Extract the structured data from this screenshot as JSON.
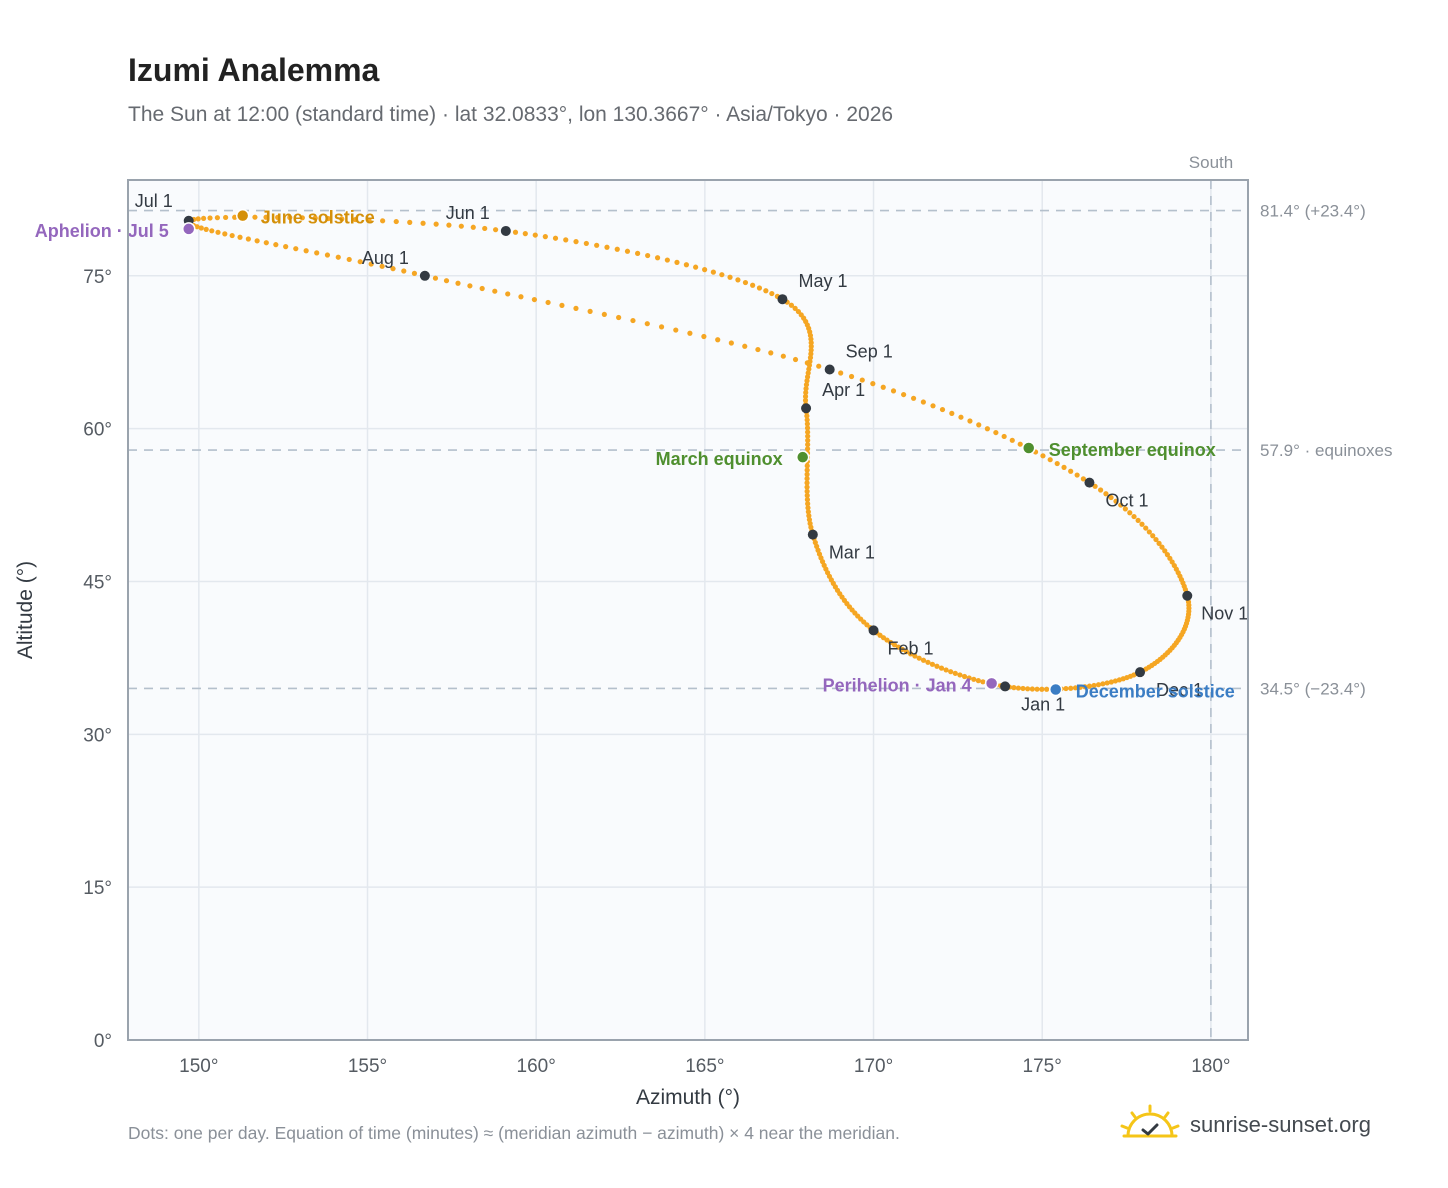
{
  "title": "Izumi Analemma",
  "subtitle": "The Sun at 12:00 (standard time) · lat 32.0833°, lon 130.3667° · Asia/Tokyo · 2026",
  "footnote": "Dots: one per day. Equation of time (minutes) ≈ (meridian azimuth − azimuth) × 4 near the meridian.",
  "brand": {
    "name": "sunrise-sunset.org",
    "icon": "sun-check-logo-icon"
  },
  "colors": {
    "curve": "#f5a623",
    "month_dot": "#333a42",
    "solstice_june": "#d4900a",
    "solstice_december": "#3b7dc4",
    "equinox": "#4f8f2f",
    "apsis": "#9467bd",
    "plot_bg": "#f9fbfd",
    "grid": "#e3e8ee",
    "frame": "#9aa3ad",
    "reference_line": "#b4c0cc"
  },
  "chart_data": {
    "type": "scatter",
    "xlabel": "Azimuth (°)",
    "ylabel": "Altitude (°)",
    "xlim": [
      147.9,
      181.1
    ],
    "ylim": [
      0,
      84.4
    ],
    "x_ticks": [
      "150°",
      "155°",
      "160°",
      "165°",
      "170°",
      "175°",
      "180°"
    ],
    "y_ticks": [
      "0°",
      "15°",
      "30°",
      "45°",
      "60°",
      "75°"
    ],
    "grid": true,
    "south_label": "South",
    "south_azimuth": 180,
    "reference_lines": [
      {
        "altitude": 81.4,
        "label": "81.4° (+23.4°)"
      },
      {
        "altitude": 57.9,
        "label": "57.9° · equinoxes"
      },
      {
        "altitude": 34.5,
        "label": "34.5° (−23.4°)"
      }
    ],
    "month_markers": [
      {
        "label": "Jan 1",
        "az": 173.9,
        "alt": 34.7
      },
      {
        "label": "Feb 1",
        "az": 170.0,
        "alt": 40.2
      },
      {
        "label": "Mar 1",
        "az": 168.2,
        "alt": 49.6
      },
      {
        "label": "Apr 1",
        "az": 168.0,
        "alt": 62.0
      },
      {
        "label": "May 1",
        "az": 167.3,
        "alt": 72.7
      },
      {
        "label": "Jun 1",
        "az": 159.1,
        "alt": 79.4
      },
      {
        "label": "Jul 1",
        "az": 149.7,
        "alt": 80.4
      },
      {
        "label": "Aug 1",
        "az": 156.7,
        "alt": 75.0
      },
      {
        "label": "Sep 1",
        "az": 168.7,
        "alt": 65.8
      },
      {
        "label": "Oct 1",
        "az": 176.4,
        "alt": 54.7
      },
      {
        "label": "Nov 1",
        "az": 179.3,
        "alt": 43.6
      },
      {
        "label": "Dec 1",
        "az": 177.9,
        "alt": 36.1
      }
    ],
    "events": [
      {
        "label": "June solstice",
        "az": 151.3,
        "alt": 80.9,
        "kind": "solstice_june"
      },
      {
        "label": "December solstice",
        "az": 175.4,
        "alt": 34.4,
        "kind": "solstice_december"
      },
      {
        "label": "March equinox",
        "az": 167.9,
        "alt": 57.2,
        "kind": "equinox"
      },
      {
        "label": "September equinox",
        "az": 174.6,
        "alt": 58.1,
        "kind": "equinox"
      },
      {
        "label": "Aphelion · Jul 5",
        "az": 149.7,
        "alt": 79.6,
        "kind": "apsis"
      },
      {
        "label": "Perihelion · Jan 4",
        "az": 173.5,
        "alt": 35.0,
        "kind": "apsis"
      }
    ]
  }
}
